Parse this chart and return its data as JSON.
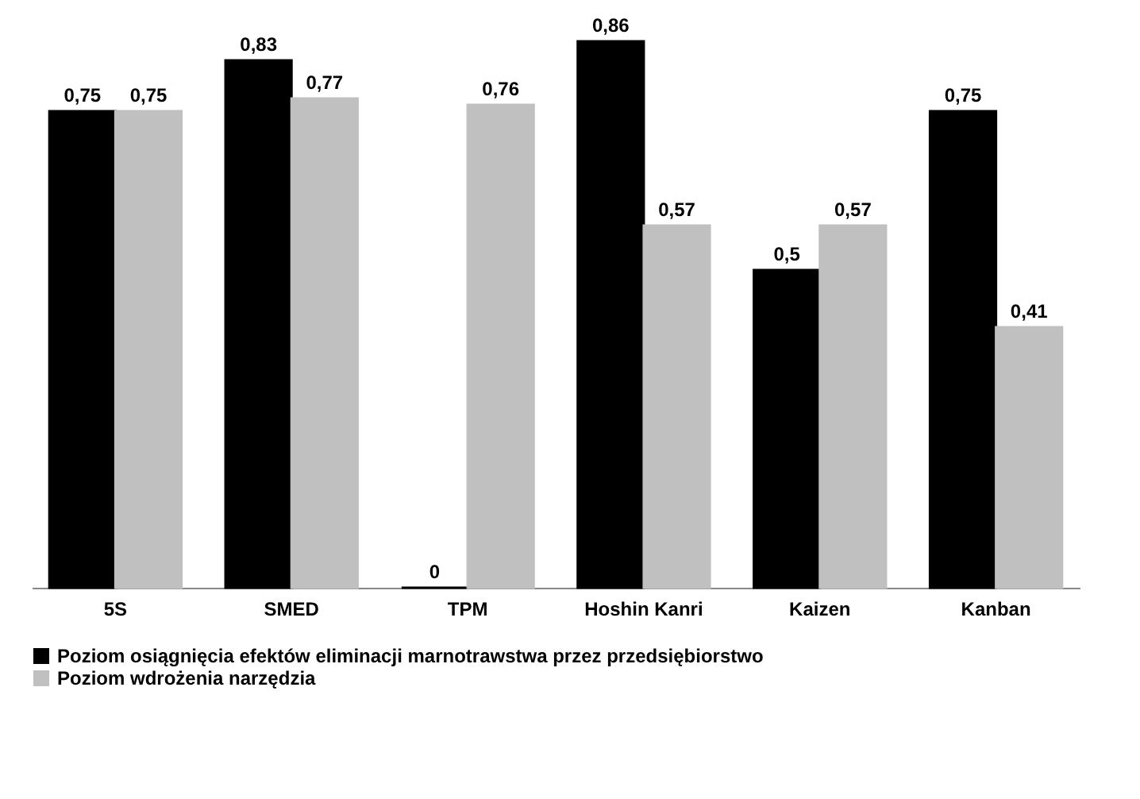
{
  "chart_data": {
    "type": "bar",
    "categories": [
      "5S",
      "SMED",
      "TPM",
      "Hoshin Kanri",
      "Kaizen",
      "Kanban"
    ],
    "series": [
      {
        "name": "Poziom osiągnięcia efektów eliminacji marnotrawstwa przez przedsiębiorstwo",
        "color": "#000000",
        "values": [
          0.75,
          0.83,
          0,
          0.86,
          0.5,
          0.75
        ],
        "value_labels": [
          "0,75",
          "0,83",
          "0",
          "0,86",
          "0,5",
          "0,75"
        ]
      },
      {
        "name": "Poziom wdrożenia narzędzia",
        "color": "#c0c0c0",
        "values": [
          0.75,
          0.77,
          0.76,
          0.57,
          0.57,
          0.41
        ],
        "value_labels": [
          "0,75",
          "0,77",
          "0,76",
          "0,57",
          "0,57",
          "0,41"
        ]
      }
    ],
    "legend": "bottom"
  }
}
